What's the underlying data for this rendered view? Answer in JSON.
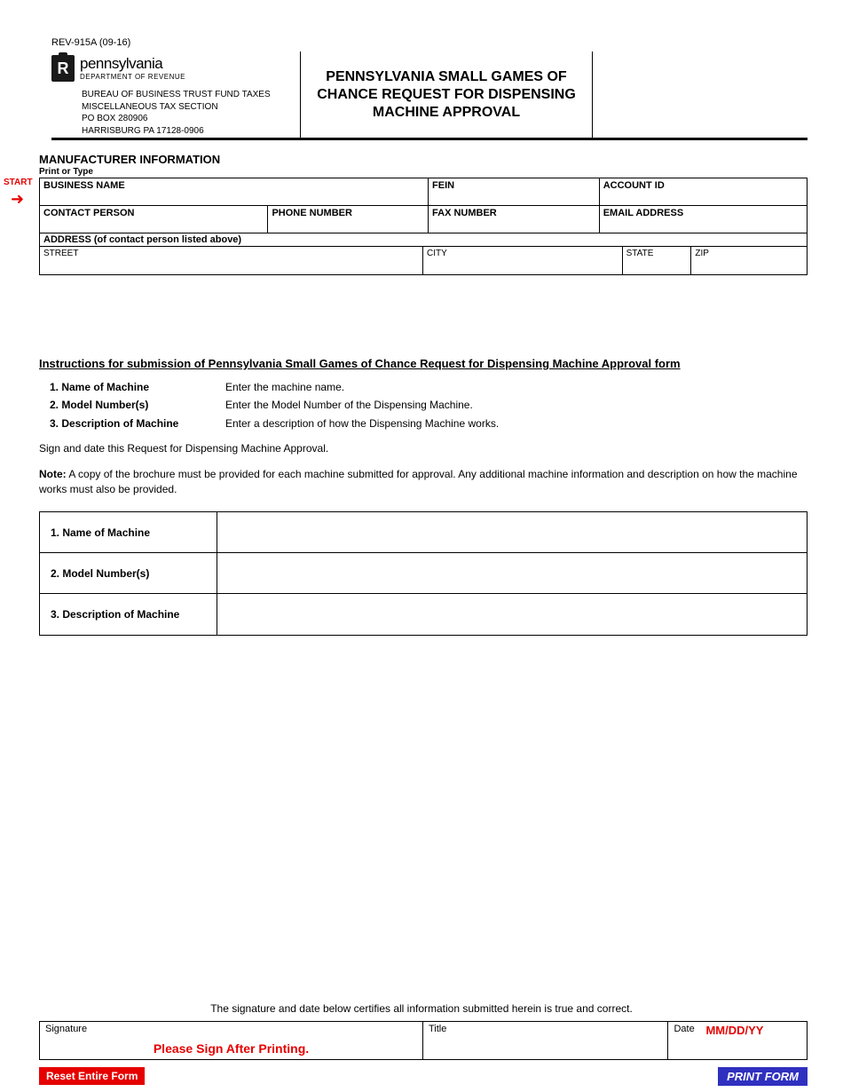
{
  "form_id": "REV-915A (09-16)",
  "logo": {
    "initial": "R",
    "state": "pennsylvania",
    "dept": "DEPARTMENT OF REVENUE"
  },
  "bureau": {
    "l1": "BUREAU OF BUSINESS TRUST FUND TAXES",
    "l2": "MISCELLANEOUS TAX SECTION",
    "l3": "PO BOX 280906",
    "l4": "HARRISBURG  PA 17128-0906"
  },
  "title": "PENNSYLVANIA SMALL GAMES OF CHANCE REQUEST FOR DISPENSING MACHINE APPROVAL",
  "section": {
    "heading": "MANUFACTURER INFORMATION",
    "sub": "Print or Type"
  },
  "start": {
    "label": "START",
    "arrow": "➜"
  },
  "fields": {
    "business_name": "BUSINESS NAME",
    "fein": "FEIN",
    "account_id": "ACCOUNT ID",
    "contact_person": "CONTACT PERSON",
    "phone": "PHONE NUMBER",
    "fax": "FAX NUMBER",
    "email": "EMAIL ADDRESS",
    "address_hdr": "ADDRESS (of contact person listed above)",
    "street": "STREET",
    "city": "CITY",
    "state": "STATE",
    "zip": "ZIP"
  },
  "instructions": {
    "title": "Instructions for submission of Pennsylvania Small Games of Chance Request for Dispensing Machine Approval form",
    "rows": [
      {
        "label": "1.  Name of Machine",
        "text": "Enter the machine name."
      },
      {
        "label": "2.  Model Number(s)",
        "text": "Enter the Model Number of the Dispensing Machine."
      },
      {
        "label": "3.  Description of Machine",
        "text": "Enter a description of how the Dispensing Machine works."
      }
    ],
    "sign_line": "Sign and date this Request for Dispensing Machine Approval.",
    "note_label": "Note:",
    "note_text": " A copy of the brochure must be provided for each machine submitted for approval. Any additional machine information and description on how the machine works must also be provided."
  },
  "machine_table": {
    "rows": [
      "1.  Name of Machine",
      "2.  Model Number(s)",
      "3.  Description of Machine"
    ]
  },
  "cert_line": "The signature and date below certifies all information submitted herein is true and correct.",
  "sig": {
    "signature": "Signature",
    "sign_after": "Please Sign After Printing.",
    "title": "Title",
    "date": "Date",
    "date_ph": "MM/DD/YY"
  },
  "buttons": {
    "reset": "Reset Entire Form",
    "print": "PRINT FORM"
  },
  "colors": {
    "red": "#e60000",
    "blue": "#3030c0",
    "black": "#000000",
    "white": "#ffffff"
  }
}
